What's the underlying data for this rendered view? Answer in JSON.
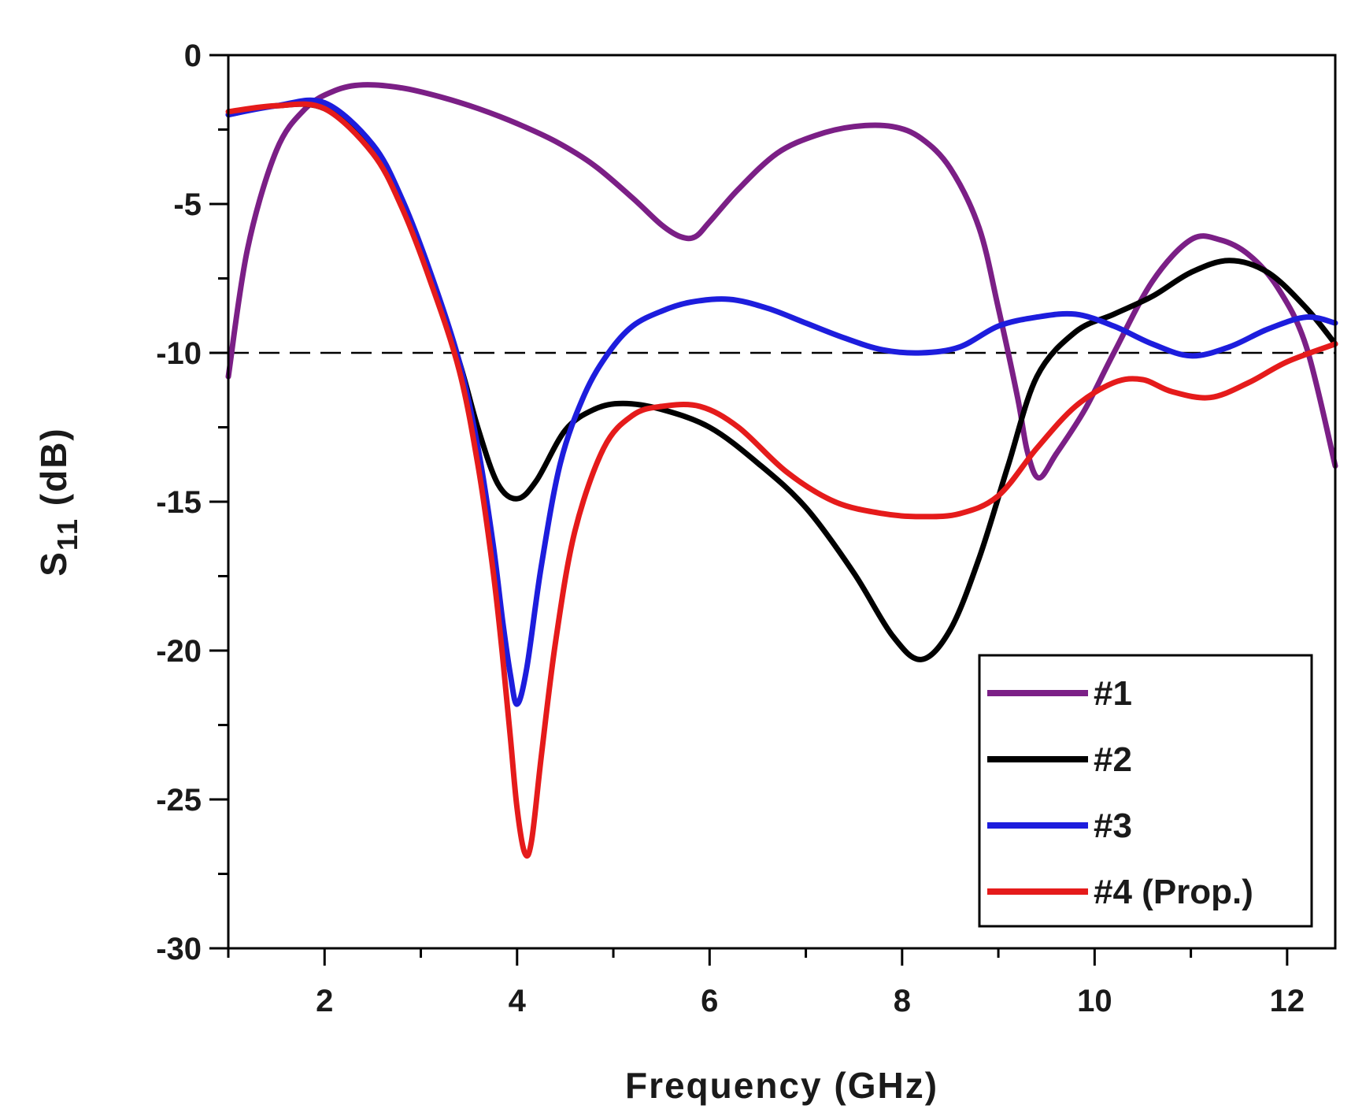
{
  "chart_data": {
    "type": "line",
    "title": "",
    "xlabel": "Frequency (GHz)",
    "ylabel": {
      "main": "S",
      "sub": "11",
      "unit": " (dB)"
    },
    "xlim": [
      1,
      12.5
    ],
    "ylim": [
      -30,
      0
    ],
    "xticks": [
      2,
      4,
      6,
      8,
      10,
      12
    ],
    "xticks_minor": [
      1,
      3,
      5,
      7,
      9,
      11
    ],
    "yticks": [
      0,
      -5,
      -10,
      -15,
      -20,
      -25,
      -30
    ],
    "yticks_minor": [
      -2.5,
      -7.5,
      -12.5,
      -17.5,
      -22.5,
      -27.5
    ],
    "xtick_labels": [
      "2",
      "4",
      "6",
      "8",
      "10",
      "12"
    ],
    "ytick_labels": [
      "0",
      "-5",
      "-10",
      "-15",
      "-20",
      "-25",
      "-30"
    ],
    "reference_line": {
      "y": -10,
      "style": "dashed",
      "color": "#000000"
    },
    "legend": {
      "position": "bottom-right"
    },
    "series": [
      {
        "name": "#1",
        "color": "#7b1f86",
        "x": [
          1.0,
          1.2,
          1.5,
          1.8,
          2.1,
          2.4,
          2.8,
          3.2,
          3.6,
          4.0,
          4.4,
          4.8,
          5.2,
          5.5,
          5.7,
          5.85,
          6.0,
          6.3,
          6.7,
          7.1,
          7.5,
          7.9,
          8.2,
          8.5,
          8.8,
          9.0,
          9.2,
          9.3,
          9.42,
          9.6,
          9.9,
          10.2,
          10.6,
          11.0,
          11.3,
          11.6,
          11.9,
          12.2,
          12.5
        ],
        "values": [
          -10.8,
          -6.5,
          -3.2,
          -1.8,
          -1.2,
          -1.0,
          -1.1,
          -1.4,
          -1.8,
          -2.3,
          -2.9,
          -3.7,
          -4.8,
          -5.7,
          -6.1,
          -6.1,
          -5.6,
          -4.5,
          -3.3,
          -2.7,
          -2.4,
          -2.4,
          -2.8,
          -3.8,
          -5.8,
          -8.5,
          -11.5,
          -13.3,
          -14.2,
          -13.4,
          -11.9,
          -10.0,
          -7.6,
          -6.2,
          -6.2,
          -6.7,
          -7.8,
          -9.8,
          -13.8
        ]
      },
      {
        "name": "#2",
        "color": "#000000",
        "x": [
          1.0,
          1.5,
          2.0,
          2.5,
          2.8,
          3.1,
          3.4,
          3.6,
          3.8,
          4.0,
          4.2,
          4.5,
          4.8,
          5.1,
          5.5,
          6.0,
          6.5,
          7.0,
          7.5,
          7.9,
          8.2,
          8.5,
          8.8,
          9.1,
          9.4,
          9.8,
          10.2,
          10.6,
          11.0,
          11.4,
          11.8,
          12.2,
          12.5
        ],
        "values": [
          -2.0,
          -1.7,
          -1.8,
          -3.2,
          -5.0,
          -7.4,
          -10.3,
          -12.6,
          -14.4,
          -14.9,
          -14.3,
          -12.6,
          -11.9,
          -11.7,
          -11.9,
          -12.5,
          -13.7,
          -15.2,
          -17.4,
          -19.5,
          -20.3,
          -19.3,
          -16.9,
          -13.8,
          -10.8,
          -9.3,
          -8.7,
          -8.1,
          -7.3,
          -6.9,
          -7.3,
          -8.5,
          -9.7
        ]
      },
      {
        "name": "#3",
        "color": "#1d1ddd",
        "x": [
          1.0,
          1.5,
          2.0,
          2.5,
          2.8,
          3.1,
          3.4,
          3.6,
          3.75,
          3.85,
          3.93,
          4.0,
          4.1,
          4.25,
          4.45,
          4.7,
          4.95,
          5.2,
          5.5,
          5.8,
          6.2,
          6.6,
          7.0,
          7.4,
          7.8,
          8.2,
          8.6,
          9.0,
          9.4,
          9.8,
          10.2,
          10.6,
          11.0,
          11.4,
          11.8,
          12.2,
          12.5
        ],
        "values": [
          -2.0,
          -1.7,
          -1.6,
          -3.0,
          -4.8,
          -7.3,
          -10.3,
          -13.3,
          -16.4,
          -19.0,
          -20.8,
          -21.8,
          -20.6,
          -17.2,
          -13.7,
          -11.4,
          -10.0,
          -9.1,
          -8.6,
          -8.3,
          -8.2,
          -8.5,
          -9.0,
          -9.5,
          -9.9,
          -10.0,
          -9.8,
          -9.1,
          -8.8,
          -8.7,
          -9.1,
          -9.7,
          -10.1,
          -9.8,
          -9.2,
          -8.8,
          -9.0
        ]
      },
      {
        "name": "#4 (Prop.)",
        "color": "#e51b1b",
        "x": [
          1.0,
          1.5,
          2.0,
          2.5,
          2.8,
          3.1,
          3.4,
          3.6,
          3.75,
          3.85,
          3.93,
          4.0,
          4.08,
          4.15,
          4.25,
          4.4,
          4.6,
          4.9,
          5.2,
          5.5,
          5.9,
          6.3,
          6.8,
          7.3,
          7.8,
          8.2,
          8.6,
          9.0,
          9.4,
          9.8,
          10.2,
          10.5,
          10.8,
          11.2,
          11.6,
          12.0,
          12.5
        ],
        "values": [
          -1.9,
          -1.7,
          -1.8,
          -3.3,
          -5.1,
          -7.6,
          -10.6,
          -13.9,
          -17.3,
          -20.2,
          -22.9,
          -25.3,
          -26.8,
          -26.4,
          -23.6,
          -19.7,
          -16.0,
          -13.2,
          -12.1,
          -11.8,
          -11.8,
          -12.5,
          -14.0,
          -15.0,
          -15.4,
          -15.5,
          -15.4,
          -14.8,
          -13.2,
          -11.8,
          -11.0,
          -10.9,
          -11.3,
          -11.5,
          -11.0,
          -10.3,
          -9.7
        ]
      }
    ]
  }
}
